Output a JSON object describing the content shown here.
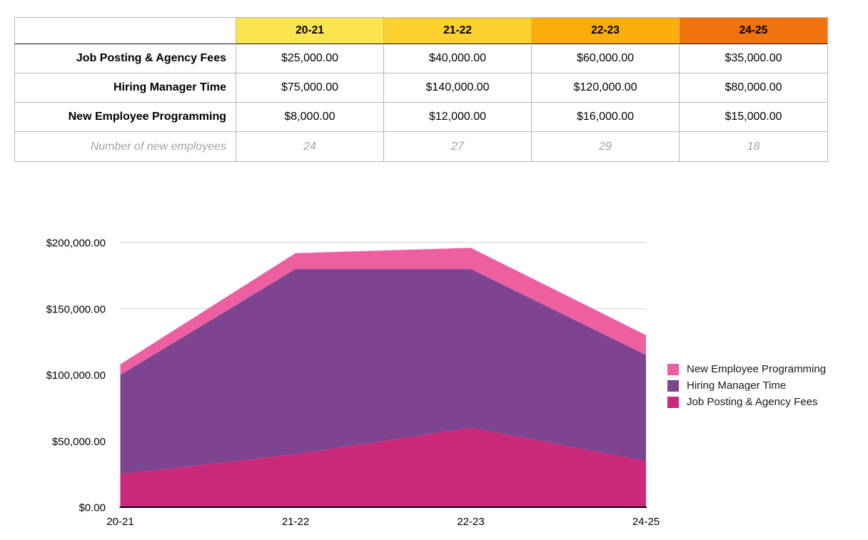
{
  "table": {
    "corner_label": "",
    "columns": [
      {
        "label": "20-21",
        "bg": "#fae54f"
      },
      {
        "label": "21-22",
        "bg": "#fcd12d"
      },
      {
        "label": "22-23",
        "bg": "#fbad0a"
      },
      {
        "label": "24-25",
        "bg": "#f0730d"
      }
    ],
    "rows": [
      {
        "label": "Job Posting & Agency Fees",
        "values": [
          "$25,000.00",
          "$40,000.00",
          "$60,000.00",
          "$35,000.00"
        ],
        "muted": false
      },
      {
        "label": "Hiring Manager Time",
        "values": [
          "$75,000.00",
          "$140,000.00",
          "$120,000.00",
          "$80,000.00"
        ],
        "muted": false
      },
      {
        "label": "New Employee Programming",
        "values": [
          "$8,000.00",
          "$12,000.00",
          "$16,000.00",
          "$15,000.00"
        ],
        "muted": false
      },
      {
        "label": "Number of new employees",
        "values": [
          "24",
          "27",
          "29",
          "18"
        ],
        "muted": true
      }
    ]
  },
  "chart_data": {
    "type": "area",
    "stacked": true,
    "title": "",
    "xlabel": "",
    "ylabel": "",
    "categories": [
      "20-21",
      "21-22",
      "22-23",
      "24-25"
    ],
    "series": [
      {
        "name": "Job Posting & Agency Fees",
        "values": [
          25000,
          40000,
          60000,
          35000
        ],
        "color": "#cb2a7b"
      },
      {
        "name": "Hiring Manager Time",
        "values": [
          75000,
          140000,
          120000,
          80000
        ],
        "color": "#7d4590"
      },
      {
        "name": "New Employee Programming",
        "values": [
          8000,
          12000,
          16000,
          15000
        ],
        "color": "#ee5fa1"
      }
    ],
    "ylim": [
      0,
      200000
    ],
    "ytick_step": 50000,
    "ytick_labels": [
      "$0.00",
      "$50,000.00",
      "$100,000.00",
      "$150,000.00",
      "$200,000.00"
    ],
    "grid": true,
    "gridline_color": "#d2d2d2",
    "axis_color": "#000000",
    "tick_label_color": "#000000",
    "legend_position": "right",
    "legend": [
      "New Employee Programming",
      "Hiring Manager Time",
      "Job Posting & Agency Fees"
    ]
  }
}
